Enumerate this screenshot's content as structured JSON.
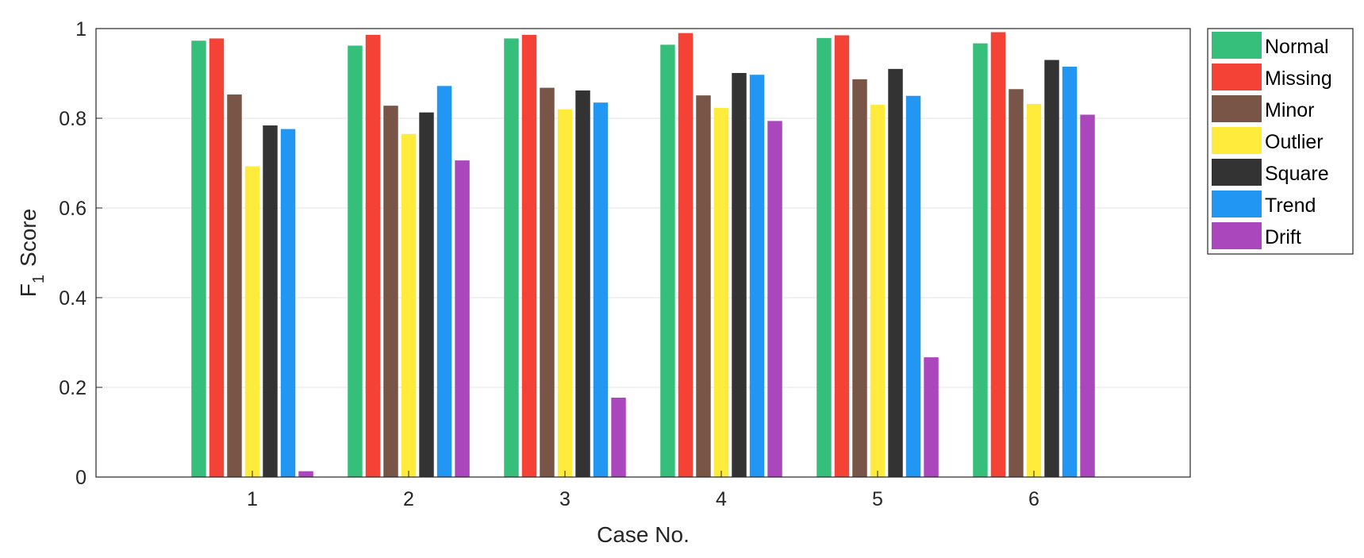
{
  "chart_data": {
    "type": "bar",
    "xlabel": "Case No.",
    "ylabel": {
      "main": "F",
      "subscript": "1",
      "suffix": "Score"
    },
    "categories": [
      "1",
      "2",
      "3",
      "4",
      "5",
      "6"
    ],
    "ylim": [
      0,
      1
    ],
    "xlim": [
      0,
      7
    ],
    "yticks": [
      0,
      0.2,
      0.4,
      0.6,
      0.8,
      1
    ],
    "ytick_labels": [
      "0",
      "0.2",
      "0.4",
      "0.6",
      "0.8",
      "1"
    ],
    "grid": "horizontal",
    "legend_position": "outside-right-top",
    "series": [
      {
        "name": "Normal",
        "color": "#35BF7A",
        "values": [
          0.973,
          0.962,
          0.978,
          0.964,
          0.979,
          0.967
        ]
      },
      {
        "name": "Missing",
        "color": "#F44336",
        "values": [
          0.978,
          0.986,
          0.986,
          0.99,
          0.985,
          0.992
        ]
      },
      {
        "name": "Minor",
        "color": "#795548",
        "values": [
          0.853,
          0.828,
          0.868,
          0.851,
          0.887,
          0.865
        ]
      },
      {
        "name": "Outlier",
        "color": "#FFEB3B",
        "values": [
          0.693,
          0.765,
          0.82,
          0.823,
          0.83,
          0.832
        ]
      },
      {
        "name": "Square",
        "color": "#333333",
        "values": [
          0.784,
          0.813,
          0.862,
          0.901,
          0.91,
          0.93
        ]
      },
      {
        "name": "Trend",
        "color": "#2196F3",
        "values": [
          0.776,
          0.872,
          0.835,
          0.897,
          0.85,
          0.915
        ]
      },
      {
        "name": "Drift",
        "color": "#AB47BC",
        "values": [
          0.013,
          0.706,
          0.177,
          0.794,
          0.267,
          0.808
        ]
      }
    ]
  }
}
